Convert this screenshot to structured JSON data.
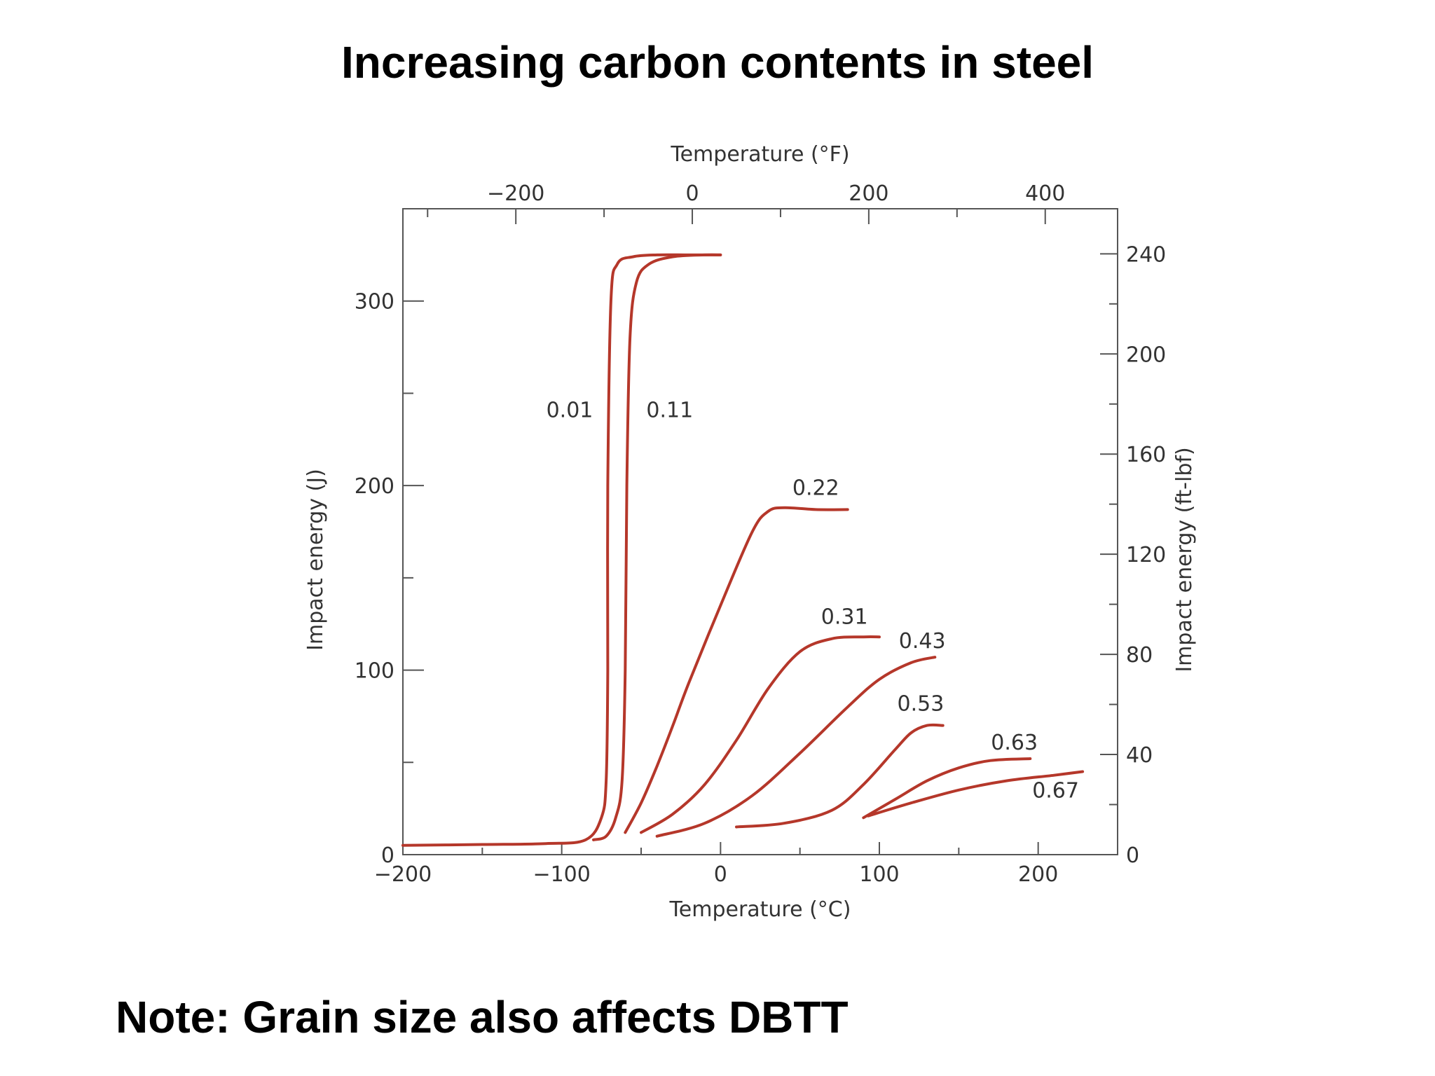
{
  "slide": {
    "title": "Increasing carbon contents in steel",
    "note": "Note: Grain size also affects DBTT"
  },
  "chart_data": {
    "type": "line",
    "title": "",
    "xlabel": "Temperature (°C)",
    "ylabel": "Impact energy (J)",
    "secondary_xlabel": "Temperature (°F)",
    "secondary_ylabel": "Impact energy (ft-lbf)",
    "xlim": [
      -200,
      250
    ],
    "ylim": [
      0,
      350
    ],
    "secondary_xlim": [
      -328,
      482
    ],
    "secondary_ylim": [
      0,
      258
    ],
    "grid": false,
    "legend": "none",
    "line_color": "#b5372a",
    "x_ticks": [
      -200,
      -100,
      0,
      100,
      200
    ],
    "x_tick_labels": [
      "−200",
      "−100",
      "0",
      "100",
      "200"
    ],
    "y_ticks": [
      0,
      100,
      200,
      300
    ],
    "y_tick_labels": [
      "0",
      "100",
      "200",
      "300"
    ],
    "x2_ticks": [
      -200,
      0,
      200,
      400
    ],
    "x2_tick_labels": [
      "−200",
      "0",
      "200",
      "400"
    ],
    "y2_ticks": [
      0,
      40,
      80,
      120,
      160,
      200,
      240
    ],
    "y2_tick_labels": [
      "0",
      "40",
      "80",
      "120",
      "160",
      "200",
      "240"
    ],
    "series": [
      {
        "name": "0.01",
        "x": [
          -200,
          -150,
          -110,
          -85,
          -75,
          -72,
          -71,
          -71,
          -69,
          -65,
          -55,
          -40,
          -20,
          0
        ],
        "y": [
          5,
          5.5,
          6,
          8,
          20,
          40,
          100,
          200,
          300,
          320,
          324,
          325,
          325,
          325
        ]
      },
      {
        "name": "0.11",
        "x": [
          -80,
          -72,
          -66,
          -62,
          -60,
          -59,
          -57,
          -53,
          -45,
          -30,
          -10,
          0
        ],
        "y": [
          8,
          10,
          20,
          40,
          100,
          200,
          280,
          310,
          320,
          324,
          325,
          325
        ]
      },
      {
        "name": "0.22",
        "x": [
          -60,
          -50,
          -40,
          -30,
          -20,
          0,
          20,
          30,
          40,
          60,
          80
        ],
        "y": [
          12,
          28,
          48,
          70,
          93,
          135,
          175,
          186,
          188,
          187,
          187
        ]
      },
      {
        "name": "0.31",
        "x": [
          -50,
          -30,
          -10,
          10,
          30,
          50,
          70,
          90,
          100
        ],
        "y": [
          12,
          22,
          38,
          62,
          90,
          110,
          117,
          118,
          118
        ]
      },
      {
        "name": "0.43",
        "x": [
          -40,
          -10,
          20,
          50,
          80,
          100,
          120,
          135
        ],
        "y": [
          10,
          17,
          32,
          55,
          80,
          95,
          104,
          107
        ]
      },
      {
        "name": "0.53",
        "x": [
          10,
          40,
          70,
          90,
          110,
          120,
          130,
          140
        ],
        "y": [
          15,
          17,
          24,
          38,
          57,
          66,
          70,
          70
        ]
      },
      {
        "name": "0.63",
        "x": [
          90,
          110,
          130,
          150,
          170,
          195
        ],
        "y": [
          20,
          30,
          40,
          47,
          51,
          52
        ]
      },
      {
        "name": "0.67",
        "x": [
          93,
          120,
          150,
          180,
          210,
          228
        ],
        "y": [
          21,
          28,
          35,
          40,
          43,
          45
        ]
      }
    ]
  }
}
